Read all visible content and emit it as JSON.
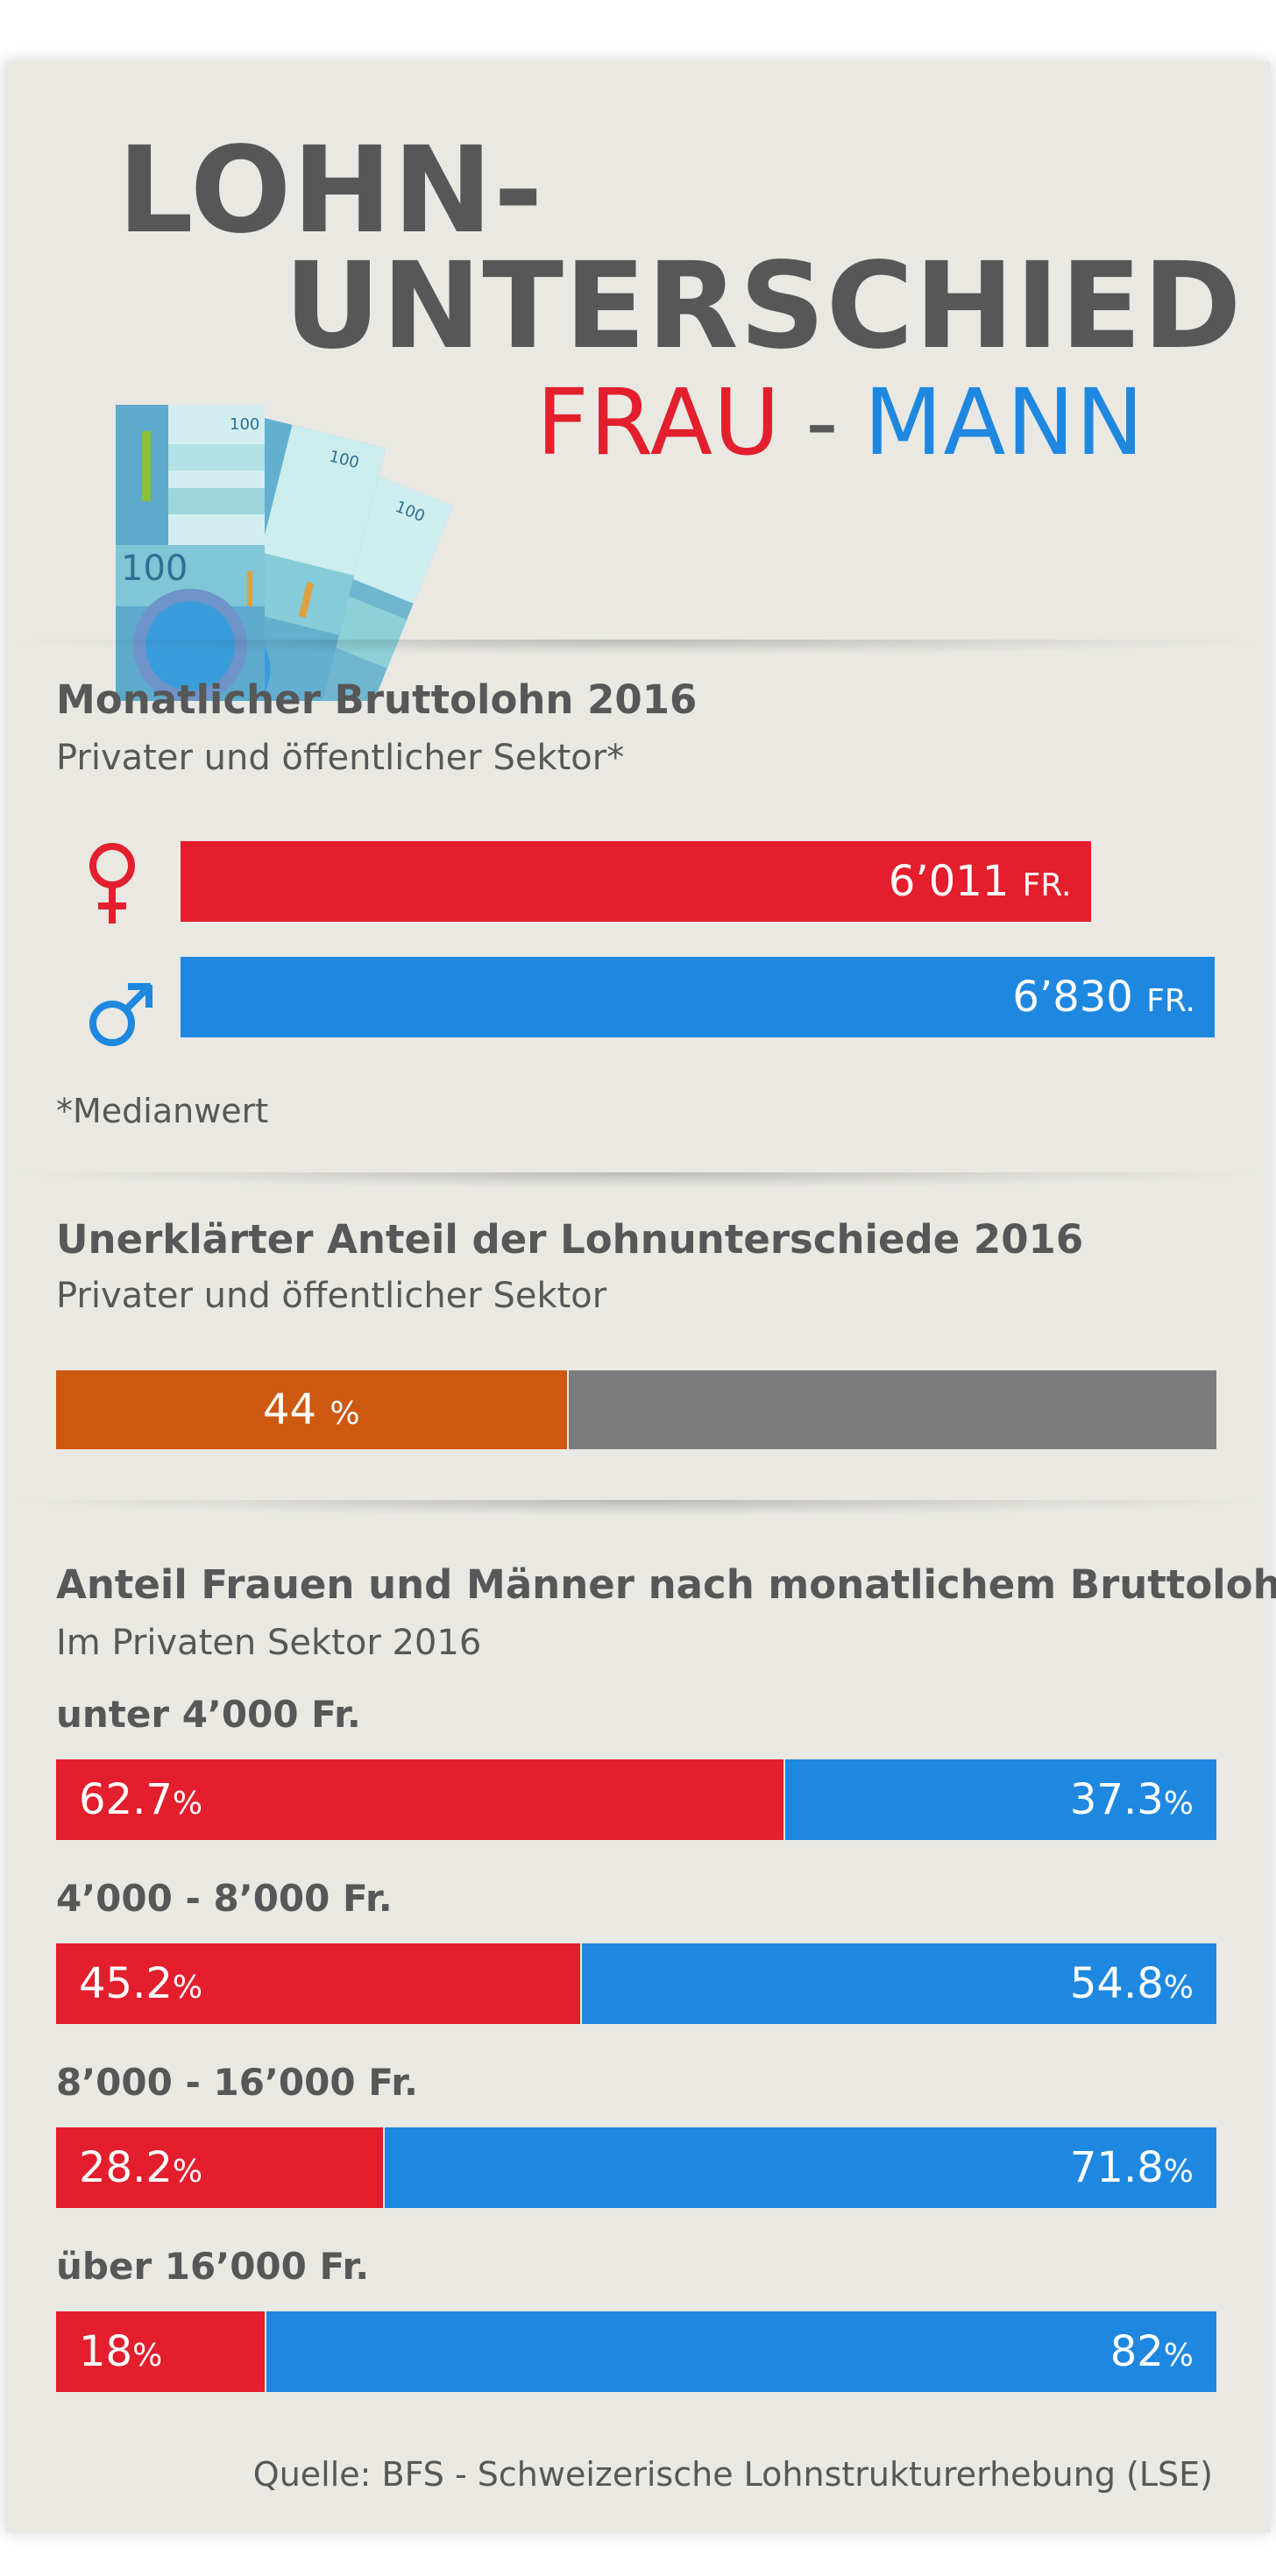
{
  "header": {
    "title_line1": "LOHN-",
    "title_line2": "UNTERSCHIED",
    "word_frau": "FRAU",
    "separator": "-",
    "word_mann": "MANN",
    "banknote_denomination": "100"
  },
  "colors": {
    "female": "#e31e2d",
    "male": "#1e88e0",
    "unexplained": "#cd580f",
    "rest": "#7b7b7b",
    "background": "#e9e8e3",
    "text": "#575757"
  },
  "section1": {
    "title": "Monatlicher Bruttolohn 2016",
    "subtitle": "Privater und öffentlicher Sektor*",
    "female_icon": "venus-symbol-icon",
    "male_icon": "mars-symbol-icon",
    "note": "*Medianwert"
  },
  "section2": {
    "title": "Unerklärter Anteil der Lohnunterschiede 2016",
    "subtitle": "Privater und öffentlicher Sektor"
  },
  "section3": {
    "title": "Anteil Frauen und Männer nach monatlichem Bruttolohn",
    "subtitle": "Im Privaten Sektor 2016"
  },
  "source": "Quelle: BFS - Schweizerische Lohnstrukturerhebung (LSE)",
  "chart_data": [
    {
      "type": "bar",
      "orientation": "horizontal",
      "title": "Monatlicher Bruttolohn 2016",
      "subtitle": "Privater und öffentlicher Sektor*",
      "series": [
        {
          "name": "Frau",
          "value": 6011,
          "label": "6’011",
          "unit": "FR."
        },
        {
          "name": "Mann",
          "value": 6830,
          "label": "6’830",
          "unit": "FR."
        }
      ],
      "xlim": [
        0,
        6830
      ]
    },
    {
      "type": "bar",
      "orientation": "horizontal",
      "stacked": true,
      "title": "Unerklärter Anteil der Lohnunterschiede 2016",
      "subtitle": "Privater und öffentlicher Sektor",
      "values": [
        44,
        56
      ],
      "labels": [
        "44",
        ""
      ],
      "unit": "%",
      "xlim": [
        0,
        100
      ]
    },
    {
      "type": "bar",
      "orientation": "horizontal",
      "stacked": true,
      "title": "Anteil Frauen und Männer nach monatlichem Bruttolohn",
      "subtitle": "Im Privaten Sektor 2016",
      "categories": [
        "unter 4’000 Fr.",
        "4’000 - 8’000 Fr.",
        "8’000 - 16’000 Fr.",
        "über 16’000 Fr."
      ],
      "series": [
        {
          "name": "Frauen",
          "values": [
            62.7,
            45.2,
            28.2,
            18
          ],
          "labels": [
            "62.7",
            "45.2",
            "28.2",
            "18"
          ]
        },
        {
          "name": "Männer",
          "values": [
            37.3,
            54.8,
            71.8,
            82
          ],
          "labels": [
            "37.3",
            "54.8",
            "71.8",
            "82"
          ]
        }
      ],
      "unit": "%",
      "xlim": [
        0,
        100
      ]
    }
  ]
}
